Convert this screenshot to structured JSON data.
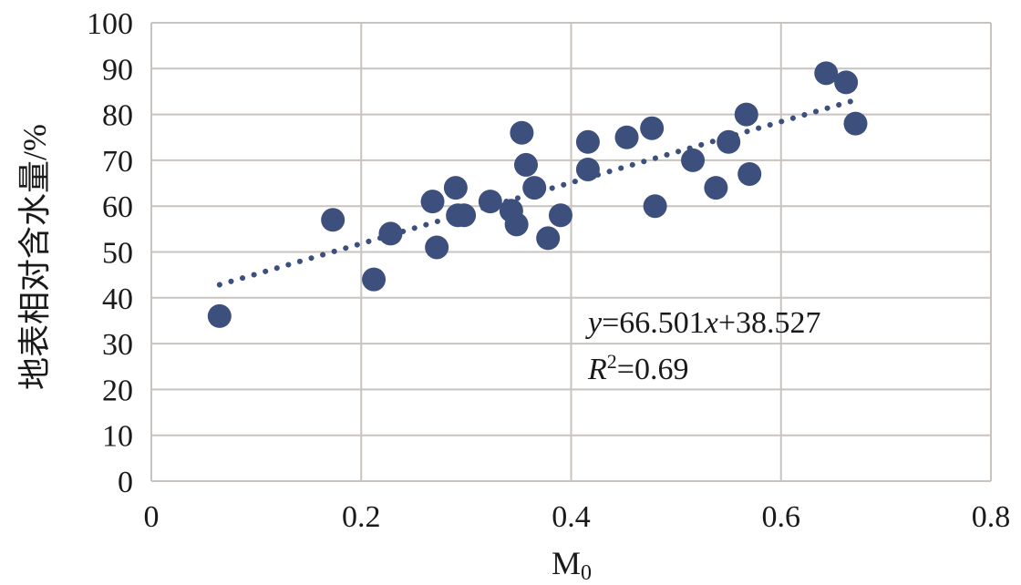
{
  "chart_data": {
    "type": "scatter",
    "xlabel": "M",
    "xlabel_subscript": "0",
    "ylabel": "地表相对含水量/%",
    "xlim": [
      0,
      0.8
    ],
    "ylim": [
      0,
      100
    ],
    "xticks": [
      "0",
      "0.2",
      "0.4",
      "0.6",
      "0.8"
    ],
    "yticks": [
      "0",
      "10",
      "20",
      "30",
      "40",
      "50",
      "60",
      "70",
      "80",
      "90",
      "100"
    ],
    "grid": true,
    "marker_color": "#3d4f7c",
    "trendline": {
      "style": "dotted",
      "slope": 66.501,
      "intercept": 38.527,
      "x_range": [
        0.065,
        0.67
      ]
    },
    "annotation": {
      "y_var": "y",
      "eq_rest": "=66.501",
      "x_var": "x",
      "eq_tail": "+38.527",
      "r_var": "R",
      "r_sup": "2",
      "r_rest": "=0.69"
    },
    "points": [
      {
        "x": 0.065,
        "y": 36
      },
      {
        "x": 0.173,
        "y": 57
      },
      {
        "x": 0.212,
        "y": 44
      },
      {
        "x": 0.228,
        "y": 54
      },
      {
        "x": 0.268,
        "y": 61
      },
      {
        "x": 0.272,
        "y": 51
      },
      {
        "x": 0.29,
        "y": 64
      },
      {
        "x": 0.292,
        "y": 58
      },
      {
        "x": 0.298,
        "y": 58
      },
      {
        "x": 0.323,
        "y": 61
      },
      {
        "x": 0.343,
        "y": 59
      },
      {
        "x": 0.348,
        "y": 56
      },
      {
        "x": 0.353,
        "y": 76
      },
      {
        "x": 0.357,
        "y": 69
      },
      {
        "x": 0.365,
        "y": 64
      },
      {
        "x": 0.378,
        "y": 53
      },
      {
        "x": 0.39,
        "y": 58
      },
      {
        "x": 0.416,
        "y": 74
      },
      {
        "x": 0.416,
        "y": 68
      },
      {
        "x": 0.453,
        "y": 75
      },
      {
        "x": 0.477,
        "y": 77
      },
      {
        "x": 0.48,
        "y": 60
      },
      {
        "x": 0.516,
        "y": 70
      },
      {
        "x": 0.538,
        "y": 64
      },
      {
        "x": 0.55,
        "y": 74
      },
      {
        "x": 0.567,
        "y": 80
      },
      {
        "x": 0.57,
        "y": 67
      },
      {
        "x": 0.643,
        "y": 89
      },
      {
        "x": 0.662,
        "y": 87
      },
      {
        "x": 0.671,
        "y": 78
      }
    ]
  }
}
